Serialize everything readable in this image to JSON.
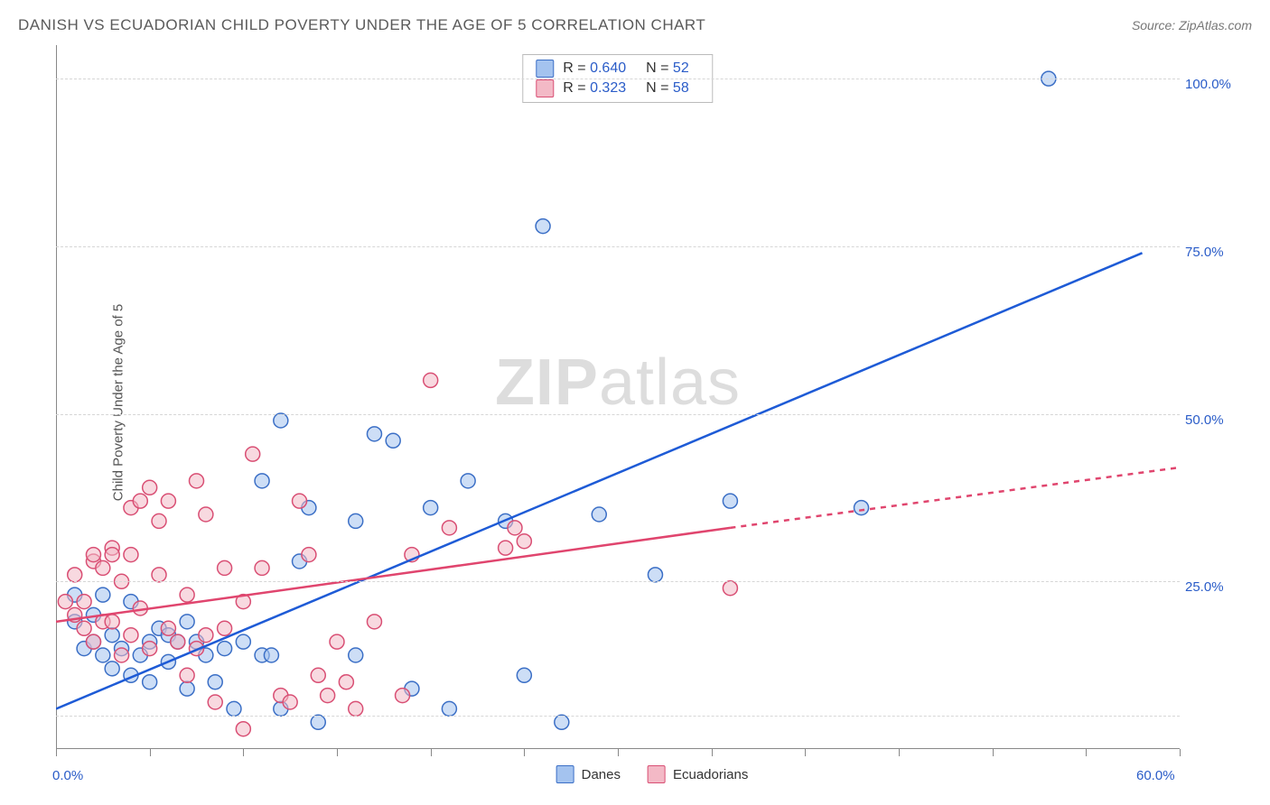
{
  "header": {
    "title": "DANISH VS ECUADORIAN CHILD POVERTY UNDER THE AGE OF 5 CORRELATION CHART",
    "source_prefix": "Source: ",
    "source_name": "ZipAtlas.com"
  },
  "watermark": {
    "bold": "ZIP",
    "rest": "atlas"
  },
  "chart": {
    "type": "scatter",
    "background_color": "#ffffff",
    "grid_color": "#d6d6d6",
    "axis_color": "#888888",
    "tick_label_color": "#2a5cc8",
    "y_axis_title": "Child Poverty Under the Age of 5",
    "xlim": [
      0,
      60
    ],
    "ylim": [
      0,
      105
    ],
    "x_ticks": [
      0,
      5,
      10,
      15,
      20,
      25,
      30,
      35,
      40,
      45,
      50,
      55,
      60
    ],
    "x_tick_labels": {
      "0": "0.0%",
      "60": "60.0%"
    },
    "y_gridlines": [
      5,
      25,
      50,
      75,
      100
    ],
    "y_tick_labels": {
      "25": "25.0%",
      "50": "50.0%",
      "75": "75.0%",
      "100": "100.0%"
    },
    "marker_radius": 8,
    "marker_opacity": 0.55,
    "line_width": 2.5,
    "series": [
      {
        "name": "Danes",
        "fill_color": "#a4c3ef",
        "stroke_color": "#3b6fc6",
        "line_color": "#1e5bd6",
        "R": "0.640",
        "N": "52",
        "regression": {
          "x1": 0,
          "y1": 6,
          "x2": 58,
          "y2": 74,
          "dashed": false
        },
        "points": [
          [
            1,
            19
          ],
          [
            1,
            23
          ],
          [
            1.5,
            15
          ],
          [
            2,
            16
          ],
          [
            2,
            20
          ],
          [
            2.5,
            14
          ],
          [
            2.5,
            23
          ],
          [
            3,
            12
          ],
          [
            3,
            17
          ],
          [
            3.5,
            15
          ],
          [
            4,
            11
          ],
          [
            4,
            22
          ],
          [
            4.5,
            14
          ],
          [
            5,
            10
          ],
          [
            5,
            16
          ],
          [
            5.5,
            18
          ],
          [
            6,
            17
          ],
          [
            6,
            13
          ],
          [
            6.5,
            16
          ],
          [
            7,
            19
          ],
          [
            7,
            9
          ],
          [
            7.5,
            16
          ],
          [
            8,
            14
          ],
          [
            8.5,
            10
          ],
          [
            9,
            15
          ],
          [
            9.5,
            6
          ],
          [
            10,
            16
          ],
          [
            11,
            14
          ],
          [
            11,
            40
          ],
          [
            11.5,
            14
          ],
          [
            12,
            6
          ],
          [
            12,
            49
          ],
          [
            13,
            28
          ],
          [
            13.5,
            36
          ],
          [
            14,
            4
          ],
          [
            16,
            34
          ],
          [
            16,
            14
          ],
          [
            17,
            47
          ],
          [
            18,
            46
          ],
          [
            19,
            9
          ],
          [
            20,
            36
          ],
          [
            21,
            6
          ],
          [
            22,
            40
          ],
          [
            24,
            34
          ],
          [
            25,
            11
          ],
          [
            26,
            78
          ],
          [
            27,
            4
          ],
          [
            29,
            35
          ],
          [
            32,
            26
          ],
          [
            36,
            37
          ],
          [
            43,
            36
          ],
          [
            53,
            100
          ]
        ]
      },
      {
        "name": "Ecuadorians",
        "fill_color": "#f3b9c6",
        "stroke_color": "#d94f74",
        "line_color": "#e0456e",
        "R": "0.323",
        "N": "58",
        "regression": {
          "x1": 0,
          "y1": 19,
          "x2": 36,
          "y2": 33,
          "dashed": false
        },
        "regression_ext": {
          "x1": 36,
          "y1": 33,
          "x2": 60,
          "y2": 42,
          "dashed": true
        },
        "points": [
          [
            0.5,
            22
          ],
          [
            1,
            20
          ],
          [
            1,
            26
          ],
          [
            1.5,
            18
          ],
          [
            1.5,
            22
          ],
          [
            2,
            16
          ],
          [
            2,
            28
          ],
          [
            2,
            29
          ],
          [
            2.5,
            19
          ],
          [
            2.5,
            27
          ],
          [
            3,
            19
          ],
          [
            3,
            30
          ],
          [
            3,
            29
          ],
          [
            3.5,
            14
          ],
          [
            3.5,
            25
          ],
          [
            4,
            17
          ],
          [
            4,
            29
          ],
          [
            4,
            36
          ],
          [
            4.5,
            21
          ],
          [
            4.5,
            37
          ],
          [
            5,
            15
          ],
          [
            5,
            39
          ],
          [
            5.5,
            26
          ],
          [
            5.5,
            34
          ],
          [
            6,
            18
          ],
          [
            6,
            37
          ],
          [
            6.5,
            16
          ],
          [
            7,
            11
          ],
          [
            7,
            23
          ],
          [
            7.5,
            15
          ],
          [
            7.5,
            40
          ],
          [
            8,
            35
          ],
          [
            8,
            17
          ],
          [
            8.5,
            7
          ],
          [
            9,
            18
          ],
          [
            9,
            27
          ],
          [
            10,
            3
          ],
          [
            10,
            22
          ],
          [
            10.5,
            44
          ],
          [
            11,
            27
          ],
          [
            12,
            8
          ],
          [
            12.5,
            7
          ],
          [
            13,
            37
          ],
          [
            13.5,
            29
          ],
          [
            14,
            11
          ],
          [
            14.5,
            8
          ],
          [
            15,
            16
          ],
          [
            15.5,
            10
          ],
          [
            16,
            6
          ],
          [
            17,
            19
          ],
          [
            18.5,
            8
          ],
          [
            19,
            29
          ],
          [
            20,
            55
          ],
          [
            21,
            33
          ],
          [
            24,
            30
          ],
          [
            24.5,
            33
          ],
          [
            25,
            31
          ],
          [
            36,
            24
          ]
        ]
      }
    ],
    "legend_top_labels": {
      "R": "R =",
      "N": "N ="
    },
    "legend_bottom": [
      "Danes",
      "Ecuadorians"
    ]
  }
}
